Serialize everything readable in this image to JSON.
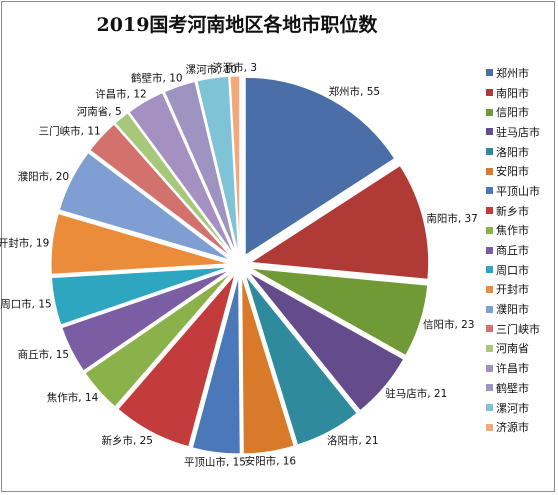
{
  "chart_data": {
    "type": "pie",
    "title": "2019国考河南地区各地市职位数",
    "legend_position": "right",
    "categories": [
      "郑州市",
      "南阳市",
      "信阳市",
      "驻马店市",
      "洛阳市",
      "安阳市",
      "平顶山市",
      "新乡市",
      "焦作市",
      "商丘市",
      "周口市",
      "开封市",
      "濮阳市",
      "三门峡市",
      "河南省",
      "许昌市",
      "鹤壁市",
      "漯河市",
      "济源市"
    ],
    "values": [
      55,
      37,
      23,
      21,
      21,
      16,
      15,
      25,
      14,
      15,
      15,
      19,
      20,
      11,
      5,
      12,
      10,
      10,
      3
    ],
    "data_labels": [
      "郑州市, 55",
      "南阳市, 37",
      "信阳市, 23",
      "驻马店市, 21",
      "洛阳市, 21",
      "安阳市, 16",
      "平顶山市, 15",
      "新乡市, 25",
      "焦作市, 14",
      "商丘市, 15",
      "周口市, 15",
      "开封市, 19",
      "濮阳市, 20",
      "三门峡市, 11",
      "河南省, 5",
      "许昌市, 12",
      "鹤壁市, 10",
      "漯河市, 10",
      "济源市, 3"
    ],
    "colors": [
      "#4a6fa8",
      "#b03a36",
      "#6f9a36",
      "#644b8c",
      "#2f8a9e",
      "#d87a2a",
      "#4a78b8",
      "#c13c3a",
      "#8bb14a",
      "#7b5da3",
      "#2ea6c0",
      "#ea8c3a",
      "#7f9fd2",
      "#d3716d",
      "#a7c77a",
      "#a490c1",
      "#9d94c2",
      "#7fc3d6",
      "#f4a877"
    ]
  }
}
